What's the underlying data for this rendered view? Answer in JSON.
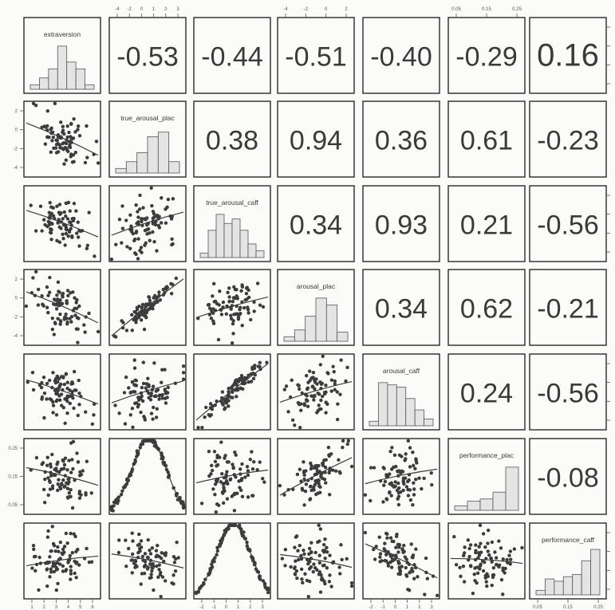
{
  "chart_data": {
    "type": "scatter-matrix",
    "variables": [
      "extraversion",
      "true_arousal_plac",
      "true_arousal_caff",
      "arousal_plac",
      "arousal_caff",
      "performance_plac",
      "performance_caff"
    ],
    "diagonal_labels": [
      "extraversion",
      "true_arousal_plac",
      "true_arousal_caff",
      "arousal_plac",
      "arousal_caff",
      "performance_plac",
      "performance_caff"
    ],
    "upper_correlations": [
      {
        "row": 0,
        "col": 1,
        "value": "-0.53"
      },
      {
        "row": 0,
        "col": 2,
        "value": "-0.44"
      },
      {
        "row": 0,
        "col": 3,
        "value": "-0.51"
      },
      {
        "row": 0,
        "col": 4,
        "value": "-0.40"
      },
      {
        "row": 0,
        "col": 5,
        "value": "-0.29"
      },
      {
        "row": 0,
        "col": 6,
        "value": "0.16"
      },
      {
        "row": 1,
        "col": 2,
        "value": "0.38"
      },
      {
        "row": 1,
        "col": 3,
        "value": "0.94"
      },
      {
        "row": 1,
        "col": 4,
        "value": "0.36"
      },
      {
        "row": 1,
        "col": 5,
        "value": "0.61"
      },
      {
        "row": 1,
        "col": 6,
        "value": "-0.23"
      },
      {
        "row": 2,
        "col": 3,
        "value": "0.34"
      },
      {
        "row": 2,
        "col": 4,
        "value": "0.93"
      },
      {
        "row": 2,
        "col": 5,
        "value": "0.21"
      },
      {
        "row": 2,
        "col": 6,
        "value": "-0.56"
      },
      {
        "row": 3,
        "col": 4,
        "value": "0.34"
      },
      {
        "row": 3,
        "col": 5,
        "value": "0.62"
      },
      {
        "row": 3,
        "col": 6,
        "value": "-0.21"
      },
      {
        "row": 4,
        "col": 5,
        "value": "0.24"
      },
      {
        "row": 4,
        "col": 6,
        "value": "-0.56"
      },
      {
        "row": 5,
        "col": 6,
        "value": "-0.08"
      }
    ],
    "histograms": [
      [
        0.1,
        0.25,
        0.45,
        0.95,
        0.6,
        0.45,
        0.1
      ],
      [
        0.1,
        0.25,
        0.45,
        0.8,
        0.9,
        0.25
      ],
      [
        0.1,
        0.6,
        0.95,
        0.75,
        0.85,
        0.6,
        0.3,
        0.15
      ],
      [
        0.1,
        0.25,
        0.55,
        0.95,
        0.8,
        0.2
      ],
      [
        0.1,
        0.95,
        0.9,
        0.85,
        0.6,
        0.35,
        0.15
      ],
      [
        0.1,
        0.2,
        0.25,
        0.4,
        0.95
      ],
      [
        0.1,
        0.35,
        0.3,
        0.4,
        0.45,
        0.75,
        1.0
      ]
    ],
    "top_axis_ticks": {
      "col1": [
        "-4",
        "-2",
        "0",
        "1",
        "2",
        "3"
      ],
      "col3": [
        "-4",
        "-2",
        "0",
        "2"
      ],
      "col5": [
        "0.05",
        "0.15",
        "0.25"
      ]
    },
    "bottom_axis_ticks": {
      "col0": [
        "1",
        "2",
        "3",
        "4",
        "5",
        "6"
      ],
      "col2": [
        "-2",
        "-1",
        "0",
        "1",
        "2",
        "3"
      ],
      "col4": [
        "-2",
        "-1",
        "0",
        "1",
        "2",
        "3"
      ],
      "col6": [
        "0.05",
        "0.15",
        "0.25"
      ]
    },
    "left_axis_ticks": {
      "row1": [
        "2",
        "0",
        "-2",
        "-4"
      ],
      "row3": [
        "2",
        "0",
        "-2",
        "-4"
      ],
      "row5": [
        "0.25",
        "0.15",
        "0.05"
      ]
    }
  }
}
